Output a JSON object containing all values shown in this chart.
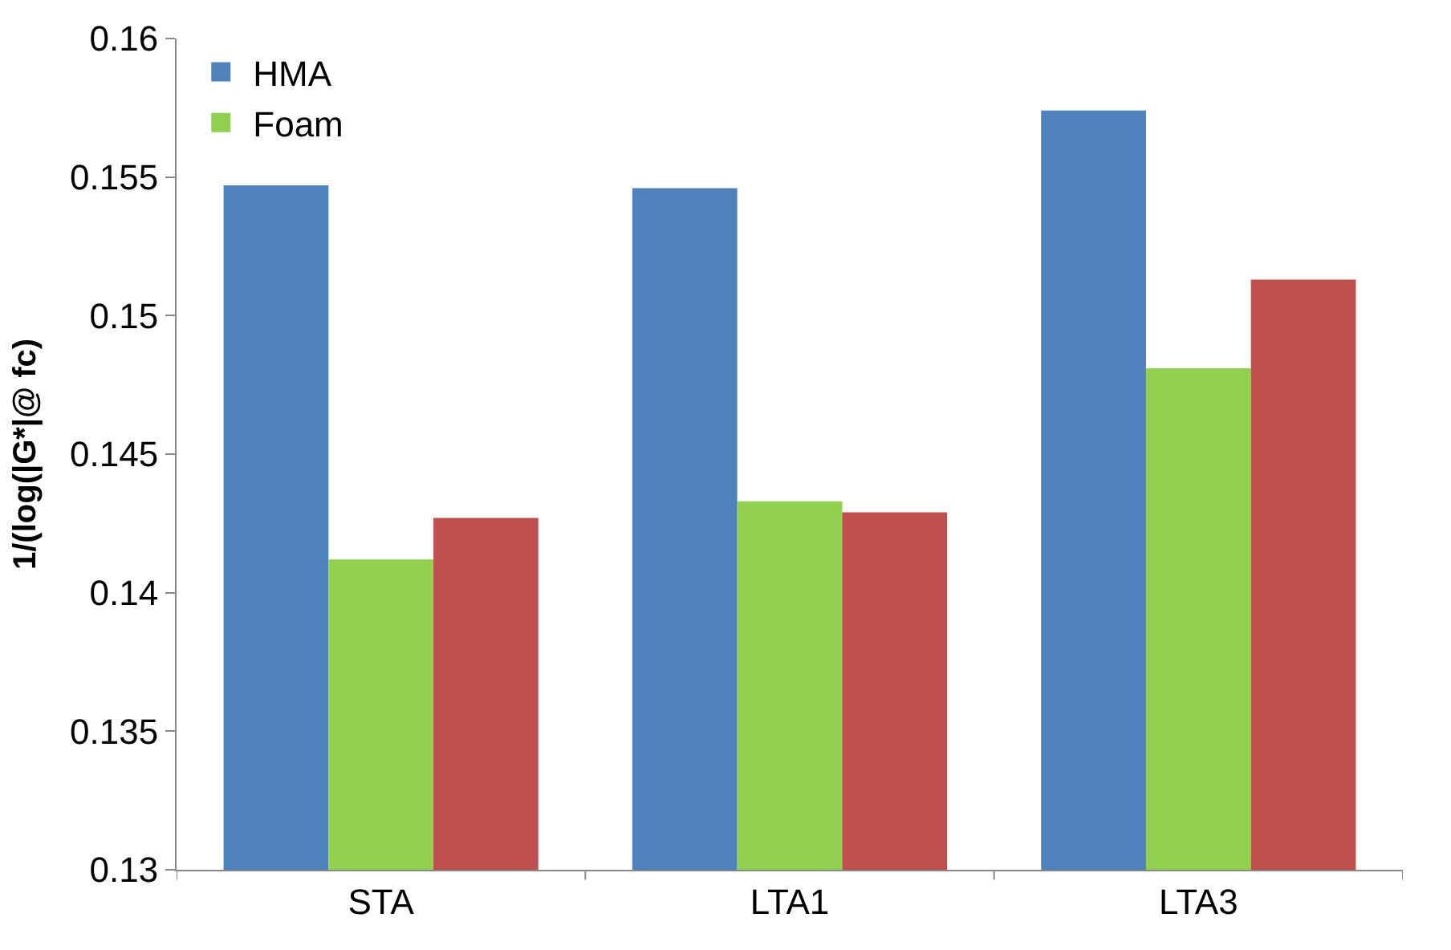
{
  "chart_data": {
    "type": "bar",
    "ylabel": "1/(log(|G*|@ fc)",
    "categories": [
      "STA",
      "LTA1",
      "LTA3"
    ],
    "series": [
      {
        "name": "HMA",
        "color": "#4f81bd",
        "values": [
          0.1547,
          0.1546,
          0.1574
        ]
      },
      {
        "name": "Foam",
        "color": "#92d050",
        "values": [
          0.1412,
          0.1433,
          0.1481
        ]
      },
      {
        "color": "#c0504d",
        "values": [
          0.1427,
          0.1429,
          0.1513
        ]
      }
    ],
    "ylim": [
      0.13,
      0.16
    ],
    "yticks": [
      0.13,
      0.135,
      0.14,
      0.145,
      0.15,
      0.155,
      0.16
    ],
    "legend": "top left"
  }
}
